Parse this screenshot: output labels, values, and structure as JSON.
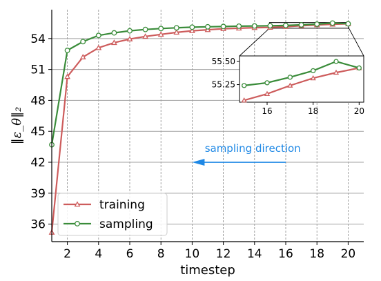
{
  "chart_data": {
    "type": "line",
    "title": "",
    "xlabel": "timestep",
    "ylabel": "‖ε_θ‖₂",
    "xlim": [
      1,
      21
    ],
    "ylim": [
      34.3,
      56.8
    ],
    "x_ticks": [
      "2",
      "4",
      "6",
      "8",
      "10",
      "12",
      "14",
      "16",
      "18",
      "20"
    ],
    "y_ticks": [
      "36",
      "39",
      "42",
      "45",
      "48",
      "51",
      "54"
    ],
    "x": [
      1,
      2,
      3,
      4,
      5,
      6,
      7,
      8,
      9,
      10,
      11,
      12,
      13,
      14,
      15,
      16,
      17,
      18,
      19,
      20
    ],
    "series": [
      {
        "name": "training",
        "color": "#cd5c5c",
        "marker": "triangle",
        "values": [
          35.2,
          50.3,
          52.2,
          53.1,
          53.6,
          53.95,
          54.2,
          54.4,
          54.6,
          54.75,
          54.85,
          54.95,
          55.0,
          55.05,
          55.08,
          55.15,
          55.24,
          55.32,
          55.38,
          55.43
        ]
      },
      {
        "name": "sampling",
        "color": "#3a8c3a",
        "marker": "circle",
        "values": [
          43.7,
          52.85,
          53.7,
          54.3,
          54.55,
          54.75,
          54.88,
          54.97,
          55.04,
          55.1,
          55.14,
          55.17,
          55.2,
          55.22,
          55.24,
          55.27,
          55.33,
          55.4,
          55.5,
          55.43
        ]
      }
    ],
    "legend": {
      "position": "lower-left"
    },
    "grid": {
      "x": true,
      "y": true,
      "x_style": "dashed",
      "y_style": "solid"
    },
    "annotation": {
      "text": "sampling direction",
      "arrow_from_x": 16,
      "arrow_to_x": 10,
      "y": 42,
      "color": "#1e88e5"
    },
    "inset": {
      "xlim": [
        14.8,
        20.2
      ],
      "ylim": [
        55.06,
        55.56
      ],
      "x_ticks": [
        "16",
        "18",
        "20"
      ],
      "y_ticks": [
        "55.25",
        "55.50"
      ],
      "zoom_box": {
        "x": [
          15,
          20
        ],
        "y": [
          55.0,
          55.55
        ]
      }
    }
  }
}
